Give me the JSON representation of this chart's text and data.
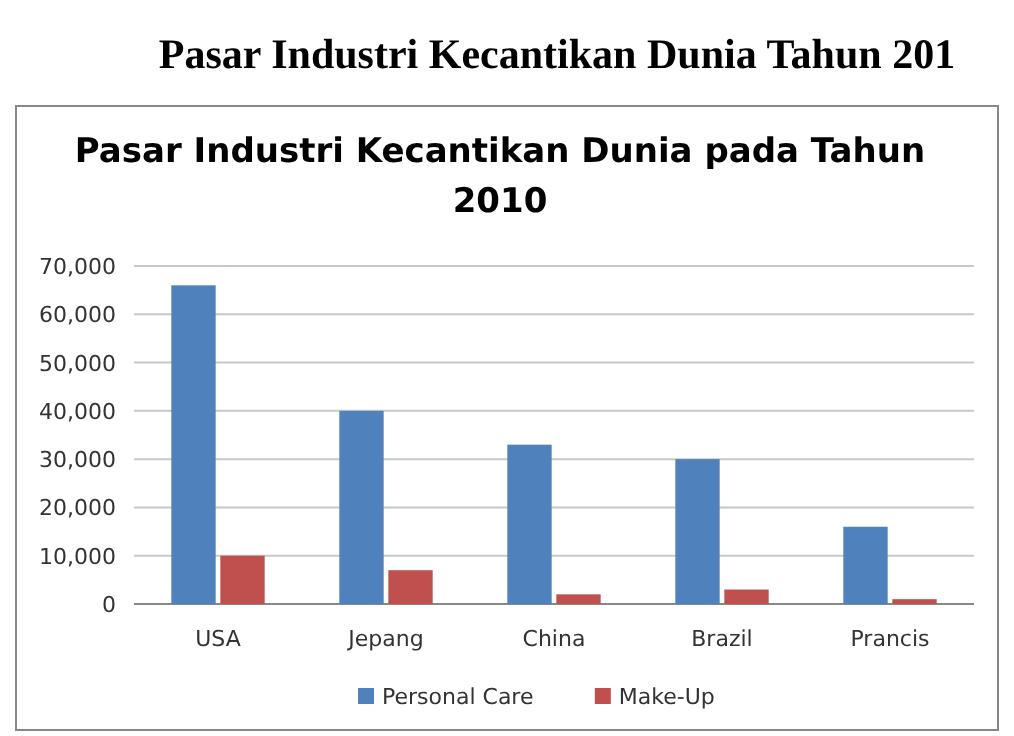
{
  "chart_data": {
    "type": "bar",
    "title": "Pasar Industri Kecantikan Dunia pada Tahun 2010",
    "annotations": [
      "Pasar Industri Kecantikan Dunia Tahun 201"
    ],
    "categories": [
      "USA",
      "Jepang",
      "China",
      "Brazil",
      "Prancis"
    ],
    "series": [
      {
        "name": "Personal Care",
        "color": "#4f81bd",
        "values": [
          66000,
          40000,
          33000,
          30000,
          16000
        ]
      },
      {
        "name": "Make-Up",
        "color": "#c0504d",
        "values": [
          10000,
          7000,
          2000,
          3000,
          1000
        ]
      }
    ],
    "ylim": [
      0,
      70000
    ],
    "yticks": [
      {
        "value": 0,
        "label": "0"
      },
      {
        "value": 10000,
        "label": "10,000"
      },
      {
        "value": 20000,
        "label": "20,000"
      },
      {
        "value": 30000,
        "label": "30,000"
      },
      {
        "value": 40000,
        "label": "40,000"
      },
      {
        "value": 50000,
        "label": "50,000"
      },
      {
        "value": 60000,
        "label": "60,000"
      },
      {
        "value": 70000,
        "label": "70,000"
      }
    ],
    "grid": "y",
    "legend": "bottom"
  }
}
